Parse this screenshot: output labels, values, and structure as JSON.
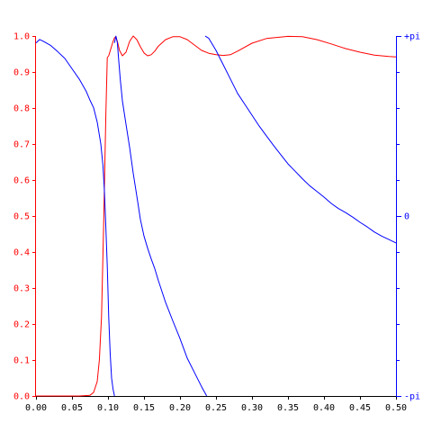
{
  "chart_data": {
    "type": "line",
    "title": "",
    "xlabel": "",
    "ylabel_left": "",
    "ylabel_right": "",
    "grid": false,
    "legend": "none",
    "colors": {
      "magnitude": "#ff0000",
      "phase": "#0000ff",
      "axis": "#000000"
    },
    "xlim": [
      0.0,
      0.5
    ],
    "ylim_left": [
      0.0,
      1.0
    ],
    "ylim_right": [
      -3.14159,
      3.14159
    ],
    "x_tick_values": [
      0.0,
      0.05,
      0.1,
      0.15,
      0.2,
      0.25,
      0.3,
      0.35,
      0.4,
      0.45,
      0.5
    ],
    "x_tick_labels": [
      "0.00",
      "0.05",
      "0.10",
      "0.15",
      "0.20",
      "0.25",
      "0.30",
      "0.35",
      "0.40",
      "0.45",
      "0.50"
    ],
    "y_left_tick_values": [
      0.0,
      0.1,
      0.2,
      0.3,
      0.4,
      0.5,
      0.6,
      0.7,
      0.8,
      0.9,
      1.0
    ],
    "y_left_tick_labels": [
      "0.0",
      "0.1",
      "0.2",
      "0.3",
      "0.4",
      "0.5",
      "0.6",
      "0.7",
      "0.8",
      "0.9",
      "1.0"
    ],
    "y_right_tick_values": [
      -3.14159,
      0,
      3.14159
    ],
    "y_right_tick_labels": [
      "-pi",
      "0",
      "+pi"
    ],
    "y_right_minor_tick_values": [
      -2.51327,
      -1.88496,
      -1.25664,
      -0.62832,
      0.62832,
      1.25664,
      1.88496,
      2.51327
    ],
    "series": [
      {
        "axis": "left",
        "color": "#ff0000",
        "points": [
          [
            0.0,
            0.0
          ],
          [
            0.02,
            0.0
          ],
          [
            0.04,
            0.0
          ],
          [
            0.06,
            0.0
          ],
          [
            0.075,
            0.002
          ],
          [
            0.08,
            0.01
          ],
          [
            0.085,
            0.04
          ],
          [
            0.088,
            0.1
          ],
          [
            0.091,
            0.22
          ],
          [
            0.094,
            0.48
          ],
          [
            0.097,
            0.78
          ],
          [
            0.099,
            0.94
          ],
          [
            0.101,
            0.945
          ],
          [
            0.104,
            0.965
          ],
          [
            0.107,
            0.985
          ],
          [
            0.109,
            0.995
          ],
          [
            0.111,
            0.998
          ],
          [
            0.113,
            0.985
          ],
          [
            0.116,
            0.96
          ],
          [
            0.12,
            0.945
          ],
          [
            0.125,
            0.955
          ],
          [
            0.13,
            0.985
          ],
          [
            0.135,
            1.0
          ],
          [
            0.14,
            0.99
          ],
          [
            0.145,
            0.97
          ],
          [
            0.15,
            0.953
          ],
          [
            0.155,
            0.945
          ],
          [
            0.16,
            0.948
          ],
          [
            0.165,
            0.958
          ],
          [
            0.17,
            0.972
          ],
          [
            0.18,
            0.99
          ],
          [
            0.19,
            0.998
          ],
          [
            0.2,
            0.998
          ],
          [
            0.21,
            0.99
          ],
          [
            0.22,
            0.975
          ],
          [
            0.23,
            0.96
          ],
          [
            0.24,
            0.952
          ],
          [
            0.25,
            0.948
          ],
          [
            0.26,
            0.946
          ],
          [
            0.27,
            0.948
          ],
          [
            0.28,
            0.958
          ],
          [
            0.3,
            0.98
          ],
          [
            0.32,
            0.993
          ],
          [
            0.35,
            0.999
          ],
          [
            0.37,
            0.998
          ],
          [
            0.39,
            0.99
          ],
          [
            0.41,
            0.978
          ],
          [
            0.43,
            0.965
          ],
          [
            0.45,
            0.955
          ],
          [
            0.47,
            0.947
          ],
          [
            0.49,
            0.943
          ],
          [
            0.5,
            0.942
          ]
        ]
      },
      {
        "axis": "right",
        "color": "#0000ff",
        "points": [
          [
            0.0,
            3.02
          ],
          [
            0.005,
            3.08
          ],
          [
            0.01,
            3.05
          ],
          [
            0.02,
            2.98
          ],
          [
            0.03,
            2.87
          ],
          [
            0.04,
            2.75
          ],
          [
            0.05,
            2.57
          ],
          [
            0.06,
            2.39
          ],
          [
            0.07,
            2.17
          ],
          [
            0.075,
            2.02
          ],
          [
            0.08,
            1.89
          ],
          [
            0.085,
            1.64
          ],
          [
            0.09,
            1.26
          ],
          [
            0.093,
            0.88
          ],
          [
            0.095,
            0.44
          ],
          [
            0.097,
            -0.19
          ],
          [
            0.099,
            -0.88
          ],
          [
            0.101,
            -1.76
          ],
          [
            0.103,
            -2.39
          ],
          [
            0.105,
            -2.83
          ],
          [
            0.107,
            -3.02
          ],
          [
            0.109,
            -3.14
          ]
        ]
      },
      {
        "axis": "right",
        "color": "#0000ff",
        "points": [
          [
            0.109,
            3.02
          ],
          [
            0.111,
            3.14
          ],
          [
            0.113,
            3.02
          ],
          [
            0.115,
            2.7
          ],
          [
            0.117,
            2.39
          ],
          [
            0.12,
            2.01
          ],
          [
            0.125,
            1.6
          ],
          [
            0.13,
            1.2
          ],
          [
            0.135,
            0.75
          ],
          [
            0.14,
            0.35
          ],
          [
            0.145,
            -0.06
          ],
          [
            0.15,
            -0.35
          ],
          [
            0.155,
            -0.56
          ],
          [
            0.16,
            -0.75
          ],
          [
            0.165,
            -0.92
          ],
          [
            0.17,
            -1.13
          ],
          [
            0.18,
            -1.51
          ],
          [
            0.19,
            -1.83
          ],
          [
            0.2,
            -2.14
          ],
          [
            0.21,
            -2.48
          ],
          [
            0.22,
            -2.73
          ],
          [
            0.23,
            -2.98
          ],
          [
            0.237,
            -3.14
          ]
        ]
      },
      {
        "axis": "right",
        "color": "#0000ff",
        "points": [
          [
            0.235,
            3.14
          ],
          [
            0.24,
            3.1
          ],
          [
            0.25,
            2.89
          ],
          [
            0.26,
            2.64
          ],
          [
            0.27,
            2.39
          ],
          [
            0.28,
            2.14
          ],
          [
            0.29,
            1.95
          ],
          [
            0.3,
            1.76
          ],
          [
            0.31,
            1.57
          ],
          [
            0.32,
            1.4
          ],
          [
            0.33,
            1.23
          ],
          [
            0.34,
            1.07
          ],
          [
            0.35,
            0.91
          ],
          [
            0.36,
            0.78
          ],
          [
            0.37,
            0.65
          ],
          [
            0.38,
            0.53
          ],
          [
            0.39,
            0.43
          ],
          [
            0.4,
            0.33
          ],
          [
            0.41,
            0.22
          ],
          [
            0.42,
            0.13
          ],
          [
            0.43,
            0.06
          ],
          [
            0.44,
            -0.02
          ],
          [
            0.45,
            -0.11
          ],
          [
            0.46,
            -0.19
          ],
          [
            0.47,
            -0.28
          ],
          [
            0.48,
            -0.35
          ],
          [
            0.49,
            -0.41
          ],
          [
            0.5,
            -0.47
          ]
        ]
      }
    ]
  }
}
